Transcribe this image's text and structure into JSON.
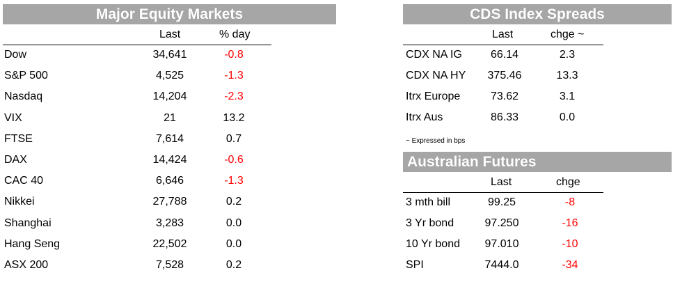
{
  "equity": {
    "title": "Major Equity Markets",
    "col_last": "Last",
    "col_change": "% day",
    "rows": [
      {
        "name": "Dow",
        "last": "34,641",
        "change": "-0.8"
      },
      {
        "name": "S&P 500",
        "last": "4,525",
        "change": "-1.3"
      },
      {
        "name": "Nasdaq",
        "last": "14,204",
        "change": "-2.3"
      },
      {
        "name": "VIX",
        "last": "21",
        "change": "13.2"
      },
      {
        "name": "FTSE",
        "last": "7,614",
        "change": "0.7"
      },
      {
        "name": "DAX",
        "last": "14,424",
        "change": "-0.6"
      },
      {
        "name": "CAC 40",
        "last": "6,646",
        "change": "-1.3"
      },
      {
        "name": "Nikkei",
        "last": "27,788",
        "change": "0.2"
      },
      {
        "name": "Shanghai",
        "last": "3,283",
        "change": "0.0"
      },
      {
        "name": "Hang Seng",
        "last": "22,502",
        "change": "0.0"
      },
      {
        "name": "ASX 200",
        "last": "7,528",
        "change": "0.2"
      }
    ]
  },
  "cds": {
    "title": "CDS Index Spreads",
    "col_last": "Last",
    "col_change": "chge ~",
    "rows": [
      {
        "name": "CDX NA IG",
        "last": "66.14",
        "change": "2.3"
      },
      {
        "name": "CDX NA HY",
        "last": "375.46",
        "change": "13.3"
      },
      {
        "name": "Itrx Europe",
        "last": "73.62",
        "change": "3.1"
      },
      {
        "name": "Itrx Aus",
        "last": "86.33",
        "change": "0.0"
      }
    ],
    "note": "~ Expressed in bps"
  },
  "futures": {
    "title": "Australian Futures",
    "col_last": "Last",
    "col_change": "chge",
    "rows": [
      {
        "name": "3 mth bill",
        "last": "99.25",
        "change": "-8"
      },
      {
        "name": "3 Yr bond",
        "last": "97.250",
        "change": "-16"
      },
      {
        "name": "10 Yr bond",
        "last": "97.010",
        "change": "-10"
      },
      {
        "name": "SPI",
        "last": "7444.0",
        "change": "-34"
      }
    ]
  },
  "colors": {
    "title_bg": "#a6a6a6",
    "title_text": "#ffffff",
    "negative": "#ff0000",
    "positive": "#000000"
  }
}
